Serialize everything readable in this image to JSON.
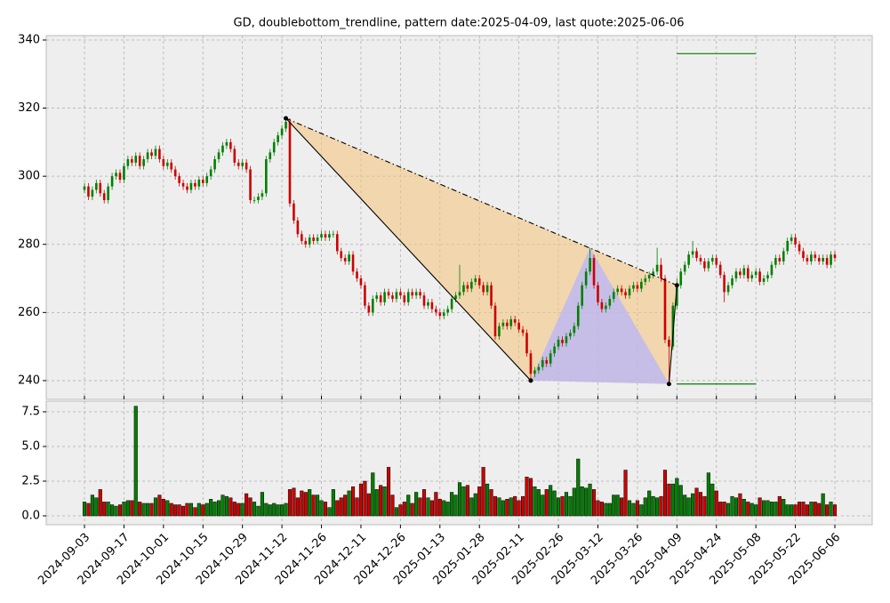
{
  "chart_data": {
    "type": "candlestick",
    "title": "GD, doublebottom_trendline, pattern date:2025-04-09, last quote:2025-06-06",
    "x": [
      "2024-09-03",
      "2024-09-04",
      "2024-09-05",
      "2024-09-06",
      "2024-09-09",
      "2024-09-10",
      "2024-09-11",
      "2024-09-12",
      "2024-09-13",
      "2024-09-16",
      "2024-09-17",
      "2024-09-18",
      "2024-09-19",
      "2024-09-20",
      "2024-09-23",
      "2024-09-24",
      "2024-09-25",
      "2024-09-26",
      "2024-09-27",
      "2024-09-30",
      "2024-10-01",
      "2024-10-02",
      "2024-10-03",
      "2024-10-04",
      "2024-10-07",
      "2024-10-08",
      "2024-10-09",
      "2024-10-10",
      "2024-10-11",
      "2024-10-14",
      "2024-10-15",
      "2024-10-16",
      "2024-10-17",
      "2024-10-18",
      "2024-10-21",
      "2024-10-22",
      "2024-10-23",
      "2024-10-24",
      "2024-10-25",
      "2024-10-28",
      "2024-10-29",
      "2024-10-30",
      "2024-10-31",
      "2024-11-01",
      "2024-11-04",
      "2024-11-05",
      "2024-11-06",
      "2024-11-07",
      "2024-11-08",
      "2024-11-11",
      "2024-11-12",
      "2024-11-13",
      "2024-11-14",
      "2024-11-15",
      "2024-11-18",
      "2024-11-19",
      "2024-11-20",
      "2024-11-21",
      "2024-11-22",
      "2024-11-25",
      "2024-11-26",
      "2024-11-27",
      "2024-11-29",
      "2024-12-02",
      "2024-12-03",
      "2024-12-04",
      "2024-12-05",
      "2024-12-06",
      "2024-12-09",
      "2024-12-10",
      "2024-12-11",
      "2024-12-12",
      "2024-12-13",
      "2024-12-16",
      "2024-12-17",
      "2024-12-18",
      "2024-12-19",
      "2024-12-20",
      "2024-12-23",
      "2024-12-24",
      "2024-12-26",
      "2024-12-27",
      "2024-12-30",
      "2024-12-31",
      "2025-01-02",
      "2025-01-03",
      "2025-01-06",
      "2025-01-07",
      "2025-01-08",
      "2025-01-10",
      "2025-01-13",
      "2025-01-14",
      "2025-01-15",
      "2025-01-16",
      "2025-01-17",
      "2025-01-21",
      "2025-01-22",
      "2025-01-23",
      "2025-01-24",
      "2025-01-27",
      "2025-01-28",
      "2025-01-29",
      "2025-01-30",
      "2025-01-31",
      "2025-02-03",
      "2025-02-04",
      "2025-02-05",
      "2025-02-06",
      "2025-02-07",
      "2025-02-10",
      "2025-02-11",
      "2025-02-12",
      "2025-02-13",
      "2025-02-14",
      "2025-02-18",
      "2025-02-19",
      "2025-02-20",
      "2025-02-21",
      "2025-02-24",
      "2025-02-25",
      "2025-02-26",
      "2025-02-27",
      "2025-02-28",
      "2025-03-03",
      "2025-03-04",
      "2025-03-05",
      "2025-03-06",
      "2025-03-07",
      "2025-03-10",
      "2025-03-11",
      "2025-03-12",
      "2025-03-13",
      "2025-03-14",
      "2025-03-17",
      "2025-03-18",
      "2025-03-19",
      "2025-03-20",
      "2025-03-21",
      "2025-03-24",
      "2025-03-25",
      "2025-03-26",
      "2025-03-27",
      "2025-03-28",
      "2025-03-31",
      "2025-04-01",
      "2025-04-02",
      "2025-04-03",
      "2025-04-04",
      "2025-04-07",
      "2025-04-08",
      "2025-04-09",
      "2025-04-10",
      "2025-04-11",
      "2025-04-14",
      "2025-04-15",
      "2025-04-16",
      "2025-04-17",
      "2025-04-21",
      "2025-04-22",
      "2025-04-23",
      "2025-04-24",
      "2025-04-25",
      "2025-04-28",
      "2025-04-29",
      "2025-04-30",
      "2025-05-01",
      "2025-05-02",
      "2025-05-05",
      "2025-05-06",
      "2025-05-07",
      "2025-05-08",
      "2025-05-09",
      "2025-05-12",
      "2025-05-13",
      "2025-05-14",
      "2025-05-15",
      "2025-05-16",
      "2025-05-19",
      "2025-05-20",
      "2025-05-21",
      "2025-05-22",
      "2025-05-23",
      "2025-05-27",
      "2025-05-28",
      "2025-05-29",
      "2025-05-30",
      "2025-06-02",
      "2025-06-03",
      "2025-06-04",
      "2025-06-05",
      "2025-06-06"
    ],
    "open": [
      296,
      297,
      294,
      296,
      298,
      295,
      293,
      297,
      300,
      301,
      299,
      303,
      305,
      304,
      306,
      303,
      305,
      307,
      306,
      308,
      305,
      303,
      304,
      302,
      300,
      298,
      297,
      296,
      298,
      297,
      299,
      298,
      300,
      302,
      305,
      307,
      309,
      310,
      308,
      304,
      303,
      304,
      302,
      293,
      293,
      294,
      295,
      305,
      307,
      310,
      312,
      314,
      316,
      292,
      287,
      283,
      281,
      280,
      282,
      281,
      282,
      283,
      282,
      283,
      283,
      278,
      276,
      275,
      277,
      272,
      270,
      268,
      262,
      260,
      264,
      265,
      263,
      266,
      265,
      264,
      266,
      265,
      263,
      266,
      265,
      266,
      265,
      262,
      263,
      261,
      260,
      259,
      260,
      261,
      264,
      265,
      266,
      268,
      267,
      269,
      270,
      268,
      266,
      268,
      262,
      253,
      256,
      257,
      256,
      258,
      257,
      255,
      254,
      248,
      242,
      243,
      244,
      246,
      245,
      248,
      250,
      252,
      251,
      253,
      254,
      256,
      262,
      268,
      272,
      276,
      268,
      263,
      261,
      262,
      264,
      266,
      267,
      266,
      265,
      267,
      268,
      267,
      269,
      270,
      271,
      272,
      274,
      270,
      252,
      250,
      262,
      268,
      272,
      274,
      277,
      278,
      276,
      275,
      273,
      275,
      276,
      274,
      271,
      266,
      268,
      270,
      272,
      271,
      273,
      270,
      271,
      272,
      269,
      270,
      271,
      274,
      276,
      275,
      278,
      281,
      282,
      280,
      278,
      276,
      275,
      277,
      276,
      275,
      276,
      274,
      277
    ],
    "high": [
      298,
      298,
      297,
      299,
      299,
      296,
      298,
      301,
      302,
      302,
      304,
      306,
      306,
      307,
      307,
      306,
      308,
      308,
      309,
      309,
      306,
      305,
      305,
      303,
      301,
      299,
      298,
      299,
      299,
      300,
      300,
      301,
      303,
      306,
      308,
      310,
      311,
      311,
      309,
      305,
      305,
      305,
      303,
      294,
      295,
      296,
      306,
      308,
      311,
      313,
      315,
      317,
      317,
      293,
      288,
      284,
      282,
      283,
      283,
      283,
      284,
      284,
      284,
      284,
      284,
      279,
      277,
      278,
      278,
      273,
      271,
      269,
      263,
      265,
      266,
      266,
      267,
      267,
      266,
      267,
      267,
      266,
      267,
      267,
      267,
      267,
      266,
      264,
      264,
      262,
      261,
      261,
      262,
      265,
      266,
      274,
      269,
      269,
      270,
      271,
      271,
      269,
      269,
      269,
      263,
      257,
      258,
      258,
      259,
      259,
      258,
      256,
      255,
      249,
      244,
      245,
      247,
      247,
      249,
      251,
      253,
      253,
      254,
      255,
      257,
      263,
      269,
      273,
      279,
      277,
      269,
      264,
      263,
      265,
      267,
      268,
      268,
      267,
      268,
      269,
      269,
      270,
      271,
      272,
      273,
      279,
      276,
      271,
      253,
      263,
      270,
      273,
      275,
      278,
      281,
      279,
      277,
      276,
      276,
      277,
      277,
      275,
      272,
      269,
      271,
      273,
      273,
      274,
      274,
      272,
      273,
      273,
      271,
      272,
      275,
      277,
      277,
      279,
      282,
      283,
      283,
      281,
      279,
      277,
      278,
      278,
      277,
      277,
      277,
      278,
      278
    ],
    "low": [
      295,
      293,
      293,
      295,
      294,
      292,
      292,
      296,
      299,
      298,
      298,
      302,
      303,
      303,
      302,
      302,
      304,
      305,
      305,
      304,
      302,
      302,
      301,
      299,
      297,
      296,
      295,
      295,
      296,
      296,
      297,
      297,
      299,
      301,
      304,
      306,
      308,
      307,
      303,
      302,
      302,
      301,
      292,
      292,
      292,
      293,
      294,
      304,
      306,
      309,
      311,
      313,
      291,
      286,
      282,
      280,
      279,
      279,
      280,
      280,
      281,
      281,
      281,
      282,
      277,
      275,
      274,
      274,
      271,
      269,
      267,
      261,
      259,
      259,
      263,
      262,
      262,
      264,
      263,
      263,
      264,
      262,
      262,
      264,
      264,
      264,
      261,
      261,
      260,
      259,
      258,
      258,
      259,
      260,
      263,
      264,
      265,
      266,
      266,
      268,
      267,
      265,
      265,
      261,
      252,
      252,
      255,
      255,
      255,
      256,
      254,
      253,
      247,
      240,
      241,
      242,
      243,
      244,
      244,
      247,
      249,
      250,
      250,
      252,
      253,
      255,
      261,
      267,
      271,
      267,
      262,
      260,
      260,
      261,
      263,
      265,
      265,
      264,
      264,
      266,
      266,
      266,
      268,
      269,
      270,
      271,
      269,
      251,
      239,
      249,
      261,
      267,
      271,
      273,
      276,
      275,
      274,
      272,
      272,
      274,
      273,
      270,
      263,
      265,
      267,
      269,
      270,
      270,
      269,
      269,
      270,
      268,
      268,
      269,
      270,
      273,
      274,
      274,
      277,
      280,
      279,
      277,
      275,
      274,
      274,
      275,
      274,
      274,
      273,
      273,
      275
    ],
    "close": [
      297,
      294,
      296,
      298,
      295,
      293,
      297,
      300,
      301,
      299,
      303,
      305,
      304,
      306,
      303,
      305,
      307,
      306,
      308,
      305,
      303,
      304,
      302,
      300,
      298,
      297,
      296,
      298,
      297,
      299,
      298,
      300,
      302,
      305,
      307,
      309,
      310,
      308,
      304,
      303,
      304,
      302,
      293,
      293,
      294,
      295,
      305,
      307,
      310,
      312,
      314,
      316,
      292,
      287,
      283,
      281,
      280,
      282,
      281,
      282,
      283,
      282,
      283,
      283,
      278,
      276,
      275,
      277,
      272,
      270,
      268,
      262,
      260,
      264,
      265,
      263,
      266,
      265,
      264,
      266,
      265,
      263,
      266,
      265,
      266,
      265,
      262,
      263,
      261,
      260,
      259,
      260,
      261,
      264,
      265,
      266,
      268,
      267,
      269,
      270,
      268,
      266,
      268,
      262,
      253,
      256,
      257,
      256,
      258,
      257,
      255,
      254,
      248,
      242,
      243,
      244,
      246,
      245,
      248,
      250,
      252,
      251,
      253,
      254,
      256,
      262,
      268,
      272,
      276,
      268,
      263,
      261,
      262,
      264,
      266,
      267,
      266,
      265,
      267,
      268,
      267,
      269,
      270,
      271,
      272,
      274,
      270,
      252,
      250,
      262,
      268,
      272,
      274,
      277,
      278,
      276,
      275,
      273,
      275,
      276,
      274,
      271,
      266,
      268,
      270,
      272,
      271,
      273,
      270,
      271,
      272,
      269,
      270,
      271,
      274,
      276,
      275,
      278,
      281,
      282,
      280,
      278,
      276,
      275,
      277,
      276,
      275,
      276,
      274,
      277,
      276
    ],
    "volume": [
      1.0,
      0.9,
      1.5,
      1.3,
      1.9,
      1.0,
      1.0,
      0.8,
      0.7,
      0.8,
      1.0,
      1.1,
      1.1,
      7.9,
      1.0,
      0.9,
      0.9,
      0.9,
      1.3,
      1.5,
      1.2,
      1.1,
      0.9,
      0.8,
      0.8,
      0.7,
      0.9,
      0.9,
      0.6,
      0.9,
      0.8,
      0.9,
      1.2,
      1.0,
      1.1,
      1.5,
      1.4,
      1.3,
      1.0,
      0.9,
      0.9,
      1.6,
      1.3,
      1.0,
      0.7,
      1.7,
      0.9,
      0.8,
      0.9,
      0.8,
      0.8,
      0.9,
      1.9,
      2.0,
      1.3,
      1.8,
      1.7,
      1.9,
      1.5,
      1.5,
      1.1,
      1.0,
      0.6,
      1.9,
      1.1,
      1.3,
      1.5,
      1.8,
      2.1,
      1.3,
      2.3,
      2.5,
      1.6,
      3.1,
      1.9,
      2.2,
      2.1,
      3.5,
      1.5,
      0.6,
      0.8,
      1.0,
      1.5,
      0.9,
      1.7,
      1.3,
      1.9,
      1.3,
      1.1,
      1.7,
      1.2,
      1.1,
      1.0,
      1.7,
      1.5,
      2.4,
      2.1,
      2.2,
      1.3,
      1.6,
      2.1,
      3.5,
      2.3,
      1.9,
      1.4,
      1.3,
      1.1,
      1.2,
      1.3,
      1.4,
      1.1,
      1.4,
      2.8,
      2.7,
      2.1,
      1.9,
      1.5,
      1.9,
      2.2,
      1.8,
      1.3,
      1.4,
      1.7,
      1.4,
      2.0,
      4.1,
      2.1,
      2.0,
      2.3,
      1.9,
      1.1,
      1.0,
      0.9,
      0.9,
      1.5,
      1.5,
      1.3,
      3.3,
      1.1,
      0.9,
      1.1,
      0.8,
      1.3,
      1.8,
      1.4,
      1.3,
      1.4,
      3.3,
      2.3,
      2.3,
      2.7,
      2.2,
      1.5,
      1.3,
      1.6,
      2.0,
      1.7,
      1.4,
      3.1,
      2.3,
      1.8,
      1.0,
      1.0,
      0.9,
      1.4,
      1.3,
      1.6,
      1.2,
      1.0,
      0.9,
      0.8,
      1.3,
      1.1,
      1.1,
      1.0,
      1.0,
      1.4,
      1.2,
      0.8,
      0.8,
      0.8,
      1.0,
      1.0,
      0.8,
      1.0,
      1.0,
      0.9,
      1.6,
      0.8,
      1.0,
      0.8
    ],
    "up_color": "#008000",
    "down_color": "#cc0000",
    "ylim": [
      234.5,
      341.3
    ],
    "yticks": [
      240,
      260,
      280,
      300,
      320,
      340
    ],
    "volume_lim": [
      -0.64,
      8.27
    ],
    "volume_ticks": [
      {
        "value": 0,
        "label": "0.0"
      },
      2.5,
      {
        "value": 5,
        "label": "5.0"
      },
      7.5
    ],
    "xticks": [
      "2024-09-03",
      "2024-09-17",
      "2024-10-01",
      "2024-10-15",
      "2024-10-29",
      "2024-11-12",
      "2024-11-26",
      "2024-12-11",
      "2024-12-26",
      "2025-01-13",
      "2025-01-28",
      "2025-02-11",
      "2025-02-26",
      "2025-03-12",
      "2025-03-26",
      "2025-04-09",
      "2025-04-24",
      "2025-05-08",
      "2025-05-22",
      "2025-06-06"
    ],
    "grid": true,
    "pattern": {
      "points": [
        {
          "x": "2024-11-13",
          "y": 317
        },
        {
          "x": "2025-02-14",
          "y": 240
        },
        {
          "x": "2025-03-10",
          "y": 279
        },
        {
          "x": "2025-04-07",
          "y": 239
        },
        {
          "x": "2025-04-09",
          "y": 268
        }
      ],
      "outer_color": "#f5c27a",
      "inner_color": "#b3b3ff"
    },
    "targets": [
      {
        "y": 336,
        "x": [
          "2025-04-09",
          "2025-05-08"
        ],
        "color": "#008000"
      },
      {
        "y": 239,
        "x": [
          "2025-04-09",
          "2025-05-08"
        ],
        "color": "#008000"
      }
    ]
  }
}
